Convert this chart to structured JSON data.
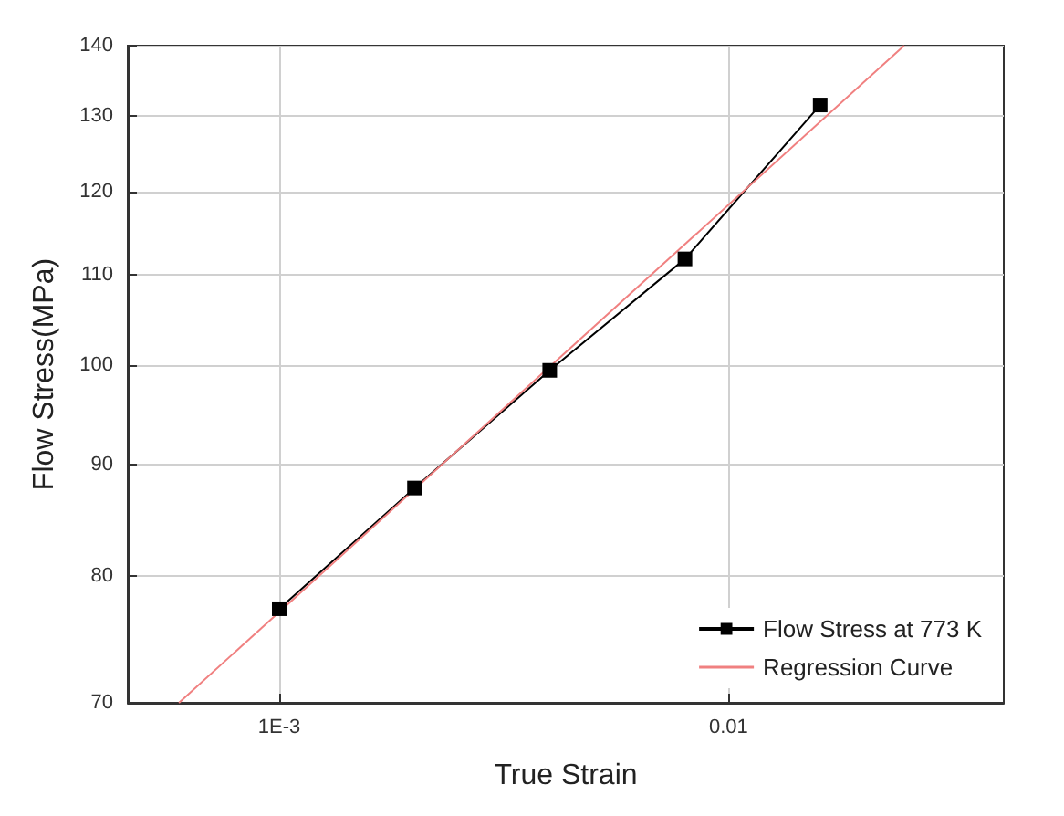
{
  "chart_data": {
    "type": "line",
    "xlabel": "True Strain",
    "ylabel": "Flow Stress(MPa)",
    "log": "xy",
    "grid": true,
    "legend": "bottom right",
    "xlim": [
      0.00046,
      0.041
    ],
    "ylim": [
      70,
      140
    ],
    "xticks": [
      {
        "value": 0.001,
        "label": "1E-3"
      },
      0.01
    ],
    "yticks": [
      70,
      80,
      90,
      100,
      110,
      120,
      130,
      140
    ],
    "series": [
      {
        "name": "Flow Stress at 773 K",
        "color": "#000000",
        "marker": "square",
        "x": [
          0.001,
          0.002,
          0.004,
          0.008,
          0.016
        ],
        "values": [
          77.3,
          87.8,
          99.4,
          111.8,
          131.5
        ]
      },
      {
        "name": "Regression Curve",
        "color": "#f08080",
        "marker": "none",
        "x": [
          0.000598,
          0.0246
        ],
        "values": [
          70,
          140
        ]
      }
    ]
  }
}
